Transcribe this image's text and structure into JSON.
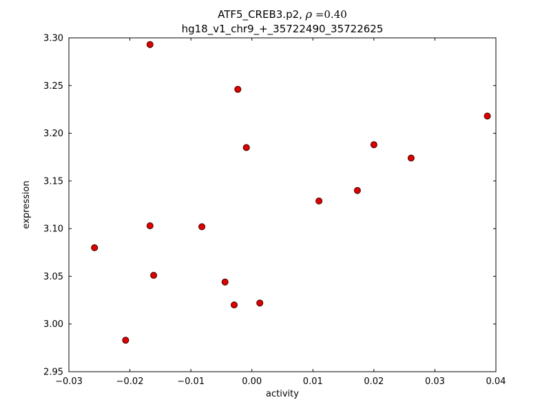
{
  "chart_data": {
    "type": "scatter",
    "title": "ATF5_CREB3.p2, ρ =0.40",
    "title_parts": {
      "name": "ATF5_CREB3.p2, ",
      "rho": "ρ",
      "value": " =0.40"
    },
    "subtitle": "hg18_v1_chr9_+_35722490_35722625",
    "xlabel": "activity",
    "ylabel": "expression",
    "xlim": [
      -0.03,
      0.04
    ],
    "ylim": [
      2.95,
      3.3
    ],
    "grid": false,
    "legend": "none",
    "xticks": [
      -0.03,
      -0.02,
      -0.01,
      0.0,
      0.01,
      0.02,
      0.03,
      0.04
    ],
    "xtick_labels": [
      "−0.03",
      "−0.02",
      "−0.01",
      "0.00",
      "0.01",
      "0.02",
      "0.03",
      "0.04"
    ],
    "yticks": [
      2.95,
      3.0,
      3.05,
      3.1,
      3.15,
      3.2,
      3.25,
      3.3
    ],
    "ytick_labels": [
      "2.95",
      "3.00",
      "3.05",
      "3.10",
      "3.15",
      "3.20",
      "3.25",
      "3.30"
    ],
    "marker": {
      "shape": "circle",
      "fill": "#e00000",
      "edge": "#3a0000",
      "radius": 4.5
    },
    "x": [
      -0.0167,
      -0.0023,
      0.0386,
      -0.0009,
      0.02,
      0.0261,
      0.0173,
      0.011,
      -0.0167,
      -0.0082,
      -0.0258,
      -0.0161,
      -0.0044,
      -0.0029,
      0.0013,
      -0.0207
    ],
    "y": [
      3.293,
      3.246,
      3.218,
      3.185,
      3.188,
      3.174,
      3.14,
      3.129,
      3.103,
      3.102,
      3.08,
      3.051,
      3.044,
      3.02,
      3.022,
      2.983
    ]
  }
}
